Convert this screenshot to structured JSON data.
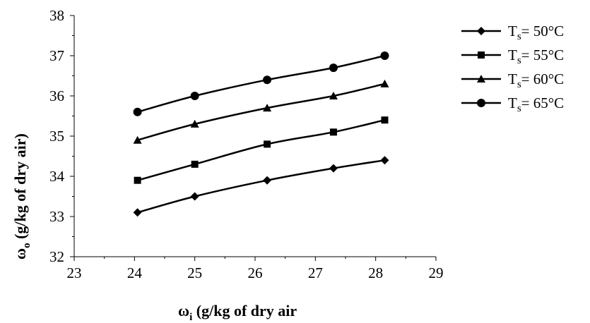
{
  "chart_data": {
    "type": "line",
    "title": "",
    "xlabel": {
      "symbol": "ω",
      "sub": "i",
      "rest": " (g/kg of dry air"
    },
    "ylabel": {
      "symbol": "ω",
      "sub": "o",
      "rest": " (g/kg of dry air)"
    },
    "xlim": [
      23,
      29
    ],
    "ylim": [
      32,
      38
    ],
    "xticks": [
      "23",
      "24",
      "25",
      "26",
      "27",
      "28",
      "29"
    ],
    "yticks": [
      "32",
      "33",
      "34",
      "35",
      "36",
      "37",
      "38"
    ],
    "grid": false,
    "legend_position": "right",
    "x": [
      24.05,
      25.0,
      26.2,
      27.3,
      28.15
    ],
    "series": [
      {
        "name": "T",
        "name_sub": "s",
        "name_rest": "= 50°C",
        "marker": "diamond",
        "color": "#000000",
        "values": [
          33.1,
          33.5,
          33.9,
          34.2,
          34.4
        ]
      },
      {
        "name": "T",
        "name_sub": "s",
        "name_rest": "= 55°C",
        "marker": "square",
        "color": "#000000",
        "values": [
          33.9,
          34.3,
          34.8,
          35.1,
          35.4
        ]
      },
      {
        "name": "T",
        "name_sub": "s",
        "name_rest": "= 60°C",
        "marker": "triangle",
        "color": "#000000",
        "values": [
          34.9,
          35.3,
          35.7,
          36.0,
          36.3
        ]
      },
      {
        "name": "T",
        "name_sub": "s",
        "name_rest": "= 65°C",
        "marker": "circle",
        "color": "#000000",
        "values": [
          35.6,
          36.0,
          36.4,
          36.7,
          37.0
        ]
      }
    ]
  }
}
